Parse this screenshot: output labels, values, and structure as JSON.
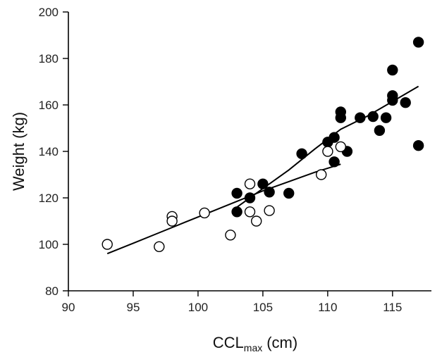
{
  "chart_data": {
    "type": "scatter",
    "title": "",
    "xlabel": {
      "main": "CCL",
      "sub": "max",
      "unit": "(cm)"
    },
    "ylabel": "Weight (kg)",
    "xlim": [
      90,
      118
    ],
    "ylim": [
      80,
      200
    ],
    "x_ticks": [
      "90",
      "95",
      "100",
      "105",
      "110",
      "115"
    ],
    "y_ticks": [
      "80",
      "100",
      "120",
      "140",
      "160",
      "180",
      "200"
    ],
    "grid": false,
    "legend": "none",
    "series": [
      {
        "marker": "filled-circle",
        "points": [
          [
            103,
            122
          ],
          [
            103,
            114
          ],
          [
            104,
            120
          ],
          [
            105,
            126
          ],
          [
            105.5,
            122.5
          ],
          [
            107,
            122
          ],
          [
            108,
            139
          ],
          [
            110,
            144
          ],
          [
            110.5,
            146
          ],
          [
            110.5,
            135.5
          ],
          [
            111,
            157
          ],
          [
            111,
            154.5
          ],
          [
            111.5,
            140
          ],
          [
            112.5,
            154.5
          ],
          [
            113.5,
            155
          ],
          [
            114,
            149
          ],
          [
            114.5,
            154.5
          ],
          [
            115,
            175
          ],
          [
            115,
            164
          ],
          [
            115,
            162
          ],
          [
            116,
            161
          ],
          [
            117,
            187
          ],
          [
            117,
            142.5
          ]
        ],
        "fit_line": [
          [
            103,
            116
          ],
          [
            105,
            124
          ],
          [
            107,
            132
          ],
          [
            109,
            141
          ],
          [
            111,
            149.5
          ],
          [
            113,
            155
          ],
          [
            115,
            161.5
          ],
          [
            117,
            168
          ]
        ]
      },
      {
        "marker": "open-circle",
        "points": [
          [
            93,
            100
          ],
          [
            97,
            99
          ],
          [
            98,
            112
          ],
          [
            98,
            110
          ],
          [
            100.5,
            113.5
          ],
          [
            102.5,
            104
          ],
          [
            104,
            126
          ],
          [
            104,
            114
          ],
          [
            104.5,
            110
          ],
          [
            105.5,
            114.5
          ],
          [
            109.5,
            130
          ],
          [
            110,
            140
          ],
          [
            111,
            142
          ]
        ],
        "fit_line": [
          [
            93,
            96
          ],
          [
            95,
            100.5
          ],
          [
            97,
            105
          ],
          [
            99,
            109.5
          ],
          [
            101,
            114
          ],
          [
            103,
            118.5
          ],
          [
            105,
            123
          ],
          [
            107,
            127
          ],
          [
            109,
            131
          ],
          [
            111,
            134.5
          ]
        ]
      }
    ]
  }
}
